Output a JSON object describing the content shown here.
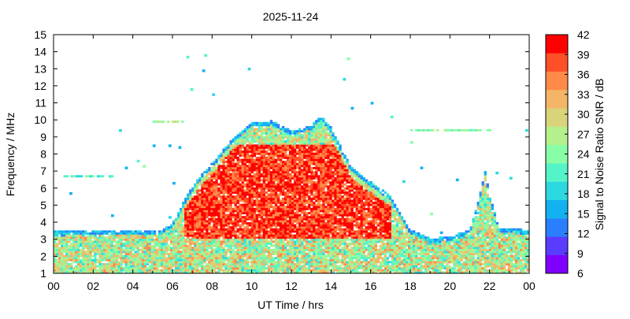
{
  "chart_data": {
    "type": "heatmap",
    "title": "2025-11-24",
    "xlabel": "UT Time / hrs",
    "ylabel": "Frequency / MHz",
    "colorbar_label": "Signal to Noise Ratio SNR / dB",
    "xlim": [
      0,
      24
    ],
    "ylim": [
      1,
      15
    ],
    "x_ticks": [
      "00",
      "02",
      "04",
      "06",
      "08",
      "10",
      "12",
      "14",
      "16",
      "18",
      "20",
      "22",
      "00"
    ],
    "y_ticks": [
      "1",
      "2",
      "3",
      "4",
      "5",
      "6",
      "7",
      "8",
      "9",
      "10",
      "11",
      "12",
      "13",
      "14",
      "15"
    ],
    "snr_range": [
      6,
      42
    ],
    "colorbar_ticks": [
      "6",
      "9",
      "12",
      "15",
      "18",
      "21",
      "24",
      "27",
      "30",
      "33",
      "36",
      "39",
      "42"
    ],
    "colorbar_colors": [
      "#8000ff",
      "#5a3cff",
      "#2a7fff",
      "#12b2f0",
      "#2cd9e0",
      "#55f4c8",
      "#88ffa6",
      "#b4f08c",
      "#d9d379",
      "#f4b566",
      "#ff8a48",
      "#ff4f28",
      "#ff0000"
    ],
    "upper_edge_mhz": [
      {
        "x": 0.0,
        "y": 3.4
      },
      {
        "x": 5.5,
        "y": 3.5
      },
      {
        "x": 6.0,
        "y": 3.9
      },
      {
        "x": 6.5,
        "y": 5.0
      },
      {
        "x": 7.0,
        "y": 6.0
      },
      {
        "x": 7.5,
        "y": 6.8
      },
      {
        "x": 8.0,
        "y": 7.4
      },
      {
        "x": 9.0,
        "y": 8.8
      },
      {
        "x": 10.0,
        "y": 9.8
      },
      {
        "x": 11.0,
        "y": 9.9
      },
      {
        "x": 12.0,
        "y": 9.3
      },
      {
        "x": 13.0,
        "y": 9.6
      },
      {
        "x": 13.5,
        "y": 10.2
      },
      {
        "x": 14.0,
        "y": 9.5
      },
      {
        "x": 15.0,
        "y": 7.2
      },
      {
        "x": 16.0,
        "y": 6.3
      },
      {
        "x": 17.0,
        "y": 5.5
      },
      {
        "x": 18.0,
        "y": 3.5
      },
      {
        "x": 19.0,
        "y": 3.0
      },
      {
        "x": 20.0,
        "y": 3.1
      },
      {
        "x": 21.0,
        "y": 3.5
      },
      {
        "x": 21.5,
        "y": 5.5
      },
      {
        "x": 21.8,
        "y": 7.0
      },
      {
        "x": 22.0,
        "y": 5.5
      },
      {
        "x": 22.5,
        "y": 3.6
      },
      {
        "x": 24.0,
        "y": 3.5
      }
    ],
    "intense_core": {
      "x_range": [
        6.5,
        17.0
      ],
      "y_range": [
        3.0,
        8.5
      ],
      "snr_db": 39
    },
    "background_band": {
      "y_range": [
        1.0,
        3.5
      ],
      "snr_db": 27
    },
    "persistent_lines": [
      {
        "y": 6.7,
        "x_range": [
          0.5,
          3.0
        ],
        "snr_db": 21
      },
      {
        "y": 9.4,
        "x_range": [
          18.0,
          22.0
        ],
        "snr_db": 24
      },
      {
        "y": 9.9,
        "x_range": [
          5.0,
          6.5
        ],
        "snr_db": 27
      }
    ],
    "scattered_points": [
      {
        "x": 6.7,
        "y": 13.7
      },
      {
        "x": 7.6,
        "y": 13.8
      },
      {
        "x": 7.5,
        "y": 12.9
      },
      {
        "x": 9.8,
        "y": 13.0
      },
      {
        "x": 6.9,
        "y": 11.8
      },
      {
        "x": 8.0,
        "y": 11.5
      },
      {
        "x": 14.6,
        "y": 12.4
      },
      {
        "x": 14.8,
        "y": 13.6
      },
      {
        "x": 15.0,
        "y": 10.7
      },
      {
        "x": 16.0,
        "y": 11.0
      },
      {
        "x": 17.0,
        "y": 10.2
      },
      {
        "x": 3.3,
        "y": 9.4
      },
      {
        "x": 5.0,
        "y": 8.5
      },
      {
        "x": 5.8,
        "y": 8.5
      },
      {
        "x": 6.3,
        "y": 8.4
      },
      {
        "x": 4.2,
        "y": 7.6
      },
      {
        "x": 4.5,
        "y": 7.3
      },
      {
        "x": 3.6,
        "y": 7.2
      },
      {
        "x": 2.8,
        "y": 6.7
      },
      {
        "x": 0.8,
        "y": 5.7
      },
      {
        "x": 2.9,
        "y": 4.4
      },
      {
        "x": 5.8,
        "y": 4.3
      },
      {
        "x": 6.0,
        "y": 6.3
      },
      {
        "x": 18.0,
        "y": 8.7
      },
      {
        "x": 18.5,
        "y": 7.2
      },
      {
        "x": 19.0,
        "y": 4.5
      },
      {
        "x": 19.5,
        "y": 3.4
      },
      {
        "x": 23.8,
        "y": 9.4
      },
      {
        "x": 22.3,
        "y": 6.9
      },
      {
        "x": 23.0,
        "y": 6.6
      },
      {
        "x": 20.3,
        "y": 6.5
      },
      {
        "x": 17.6,
        "y": 6.4
      }
    ]
  }
}
